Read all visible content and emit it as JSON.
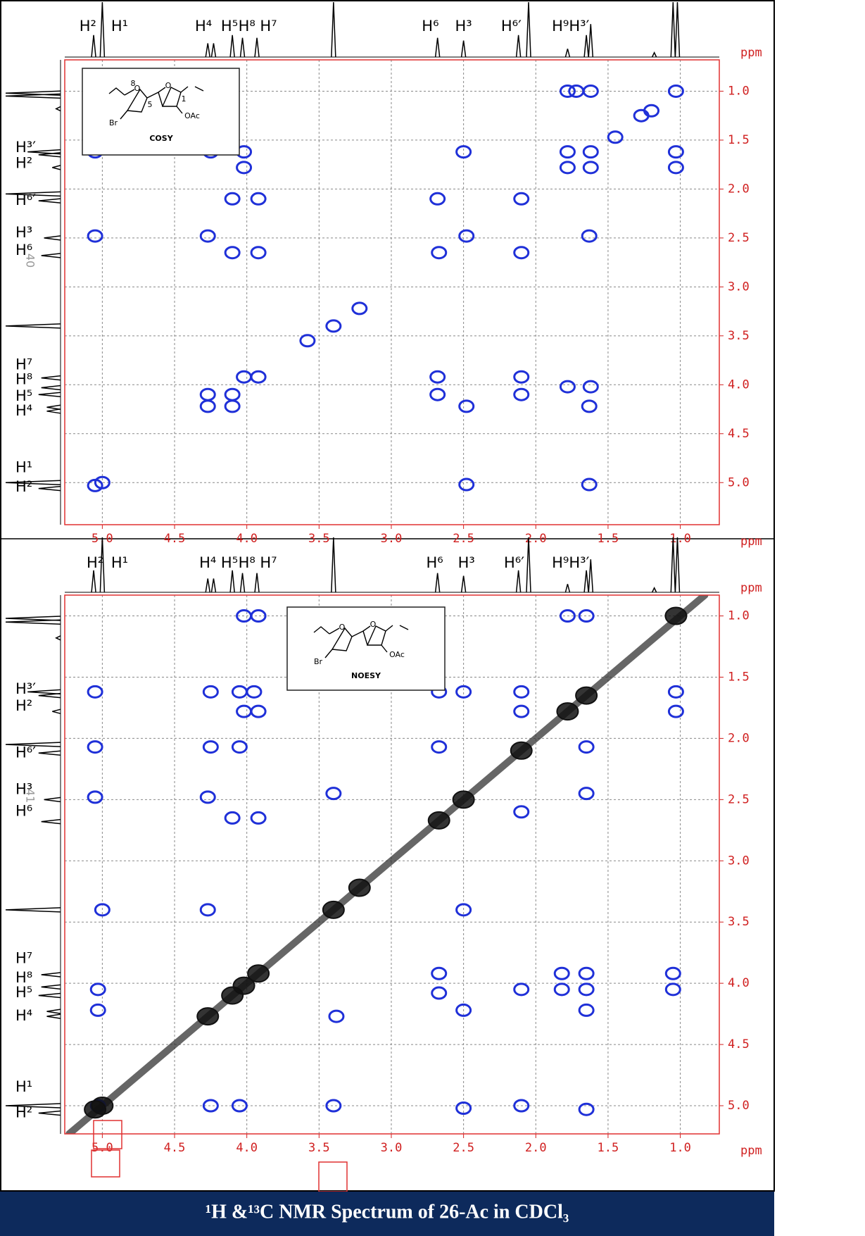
{
  "chart_data": [
    {
      "type": "scatter",
      "xlabel": "ppm",
      "ylabel": "ppm",
      "xlim": [
        5.26,
        0.73
      ],
      "ylim": [
        5.43,
        0.68
      ],
      "xticks": [
        {
          "value": 5.0,
          "label": "5.0"
        },
        {
          "value": 4.5,
          "label": "4.5"
        },
        {
          "value": 4.0,
          "label": "4.0"
        },
        {
          "value": 3.5,
          "label": "3.5"
        },
        {
          "value": 3.0,
          "label": "3.0"
        },
        {
          "value": 2.5,
          "label": "2.5"
        },
        {
          "value": 2.0,
          "label": "2.0"
        },
        {
          "value": 1.5,
          "label": "1.5"
        },
        {
          "value": 1.0,
          "label": "1.0"
        }
      ],
      "yticks": [
        {
          "value": 1.0,
          "label": "1.0"
        },
        {
          "value": 1.5,
          "label": "1.5"
        },
        {
          "value": 2.0,
          "label": "2.0"
        },
        {
          "value": 2.5,
          "label": "2.5"
        },
        {
          "value": 3.0,
          "label": "3.0"
        },
        {
          "value": 3.5,
          "label": "3.5"
        },
        {
          "value": 4.0,
          "label": "4.0"
        },
        {
          "value": 4.5,
          "label": "4.5"
        },
        {
          "value": 5.0,
          "label": "5.0"
        }
      ],
      "grid": true,
      "diagonal": false,
      "series": [
        {
          "color": "#1f30d8",
          "x": [
            1.78,
            1.72,
            1.62,
            1.03,
            1.45,
            1.27,
            1.2,
            5.05,
            4.25,
            4.02,
            2.5,
            1.78,
            1.62,
            1.03,
            4.02,
            1.78,
            1.62,
            1.03,
            4.1,
            3.92,
            2.68,
            2.1,
            5.05,
            4.27,
            2.48,
            1.63,
            4.1,
            3.92,
            2.67,
            2.1,
            3.58,
            3.4,
            3.22,
            4.02,
            3.92,
            2.68,
            2.1,
            1.78,
            1.62,
            4.27,
            4.1,
            2.68,
            2.1,
            4.27,
            4.1,
            2.48,
            1.63,
            5.05,
            5.0,
            2.48,
            1.63
          ],
          "values": [
            1.0,
            1.0,
            1.0,
            1.0,
            1.47,
            1.25,
            1.2,
            1.62,
            1.62,
            1.62,
            1.62,
            1.62,
            1.62,
            1.62,
            1.78,
            1.78,
            1.78,
            1.78,
            2.1,
            2.1,
            2.1,
            2.1,
            2.48,
            2.48,
            2.48,
            2.48,
            2.65,
            2.65,
            2.65,
            2.65,
            3.55,
            3.4,
            3.22,
            3.92,
            3.92,
            3.92,
            3.92,
            4.02,
            4.02,
            4.1,
            4.1,
            4.1,
            4.1,
            4.22,
            4.22,
            4.22,
            4.22,
            5.03,
            5.0,
            5.02,
            5.02
          ]
        }
      ],
      "projection": {
        "x": [
          5.06,
          5.0,
          4.27,
          4.23,
          4.1,
          4.03,
          3.93,
          3.4,
          2.68,
          2.5,
          2.12,
          2.05,
          1.78,
          1.65,
          1.62,
          1.18,
          1.05,
          1.02
        ],
        "values": [
          40,
          100,
          25,
          25,
          40,
          35,
          35,
          100,
          35,
          30,
          40,
          100,
          15,
          40,
          60,
          8,
          100,
          100
        ]
      },
      "top_labels": [
        {
          "text": "H²",
          "x": 5.1
        },
        {
          "text": "H¹",
          "x": 4.88
        },
        {
          "text": "H⁴",
          "x": 4.3
        },
        {
          "text": "H⁵",
          "x": 4.12
        },
        {
          "text": "H⁸",
          "x": 4.0
        },
        {
          "text": "H⁷",
          "x": 3.85
        },
        {
          "text": "H⁶",
          "x": 2.73
        },
        {
          "text": "H³",
          "x": 2.5
        },
        {
          "text": "H⁶′",
          "x": 2.17
        },
        {
          "text": "H⁹",
          "x": 1.83
        },
        {
          "text": "H³′",
          "x": 1.7
        }
      ],
      "side_labels": [
        {
          "text": "H³′",
          "y": 1.58
        },
        {
          "text": "H²",
          "y": 1.74
        },
        {
          "text": "H⁶′",
          "y": 2.12
        },
        {
          "text": "H³",
          "y": 2.45
        },
        {
          "text": "H⁶",
          "y": 2.63
        },
        {
          "text": "H⁷",
          "y": 3.8
        },
        {
          "text": "H⁸",
          "y": 3.95
        },
        {
          "text": "H⁵",
          "y": 4.12
        },
        {
          "text": "H⁴",
          "y": 4.27
        },
        {
          "text": "H¹",
          "y": 4.85
        },
        {
          "text": "H²",
          "y": 5.05
        }
      ],
      "inset": {
        "label": "COSY",
        "atoms": [
          "O",
          "O",
          "Br",
          "OAc",
          "8",
          "5",
          "1"
        ]
      },
      "page_number": "40"
    },
    {
      "type": "scatter",
      "xlabel": "ppm",
      "ylabel": "ppm",
      "xlim": [
        5.26,
        0.73
      ],
      "ylim": [
        5.23,
        0.83
      ],
      "xticks": [
        {
          "value": 5.0,
          "label": "5.0"
        },
        {
          "value": 4.5,
          "label": "4.5"
        },
        {
          "value": 4.0,
          "label": "4.0"
        },
        {
          "value": 3.5,
          "label": "3.5"
        },
        {
          "value": 3.0,
          "label": "3.0"
        },
        {
          "value": 2.5,
          "label": "2.5"
        },
        {
          "value": 2.0,
          "label": "2.0"
        },
        {
          "value": 1.5,
          "label": "1.5"
        },
        {
          "value": 1.0,
          "label": "1.0"
        }
      ],
      "yticks": [
        {
          "value": 1.0,
          "label": "1.0"
        },
        {
          "value": 1.5,
          "label": "1.5"
        },
        {
          "value": 2.0,
          "label": "2.0"
        },
        {
          "value": 2.5,
          "label": "2.5"
        },
        {
          "value": 3.0,
          "label": "3.0"
        },
        {
          "value": 3.5,
          "label": "3.5"
        },
        {
          "value": 4.0,
          "label": "4.0"
        },
        {
          "value": 4.5,
          "label": "4.5"
        },
        {
          "value": 5.0,
          "label": "5.0"
        }
      ],
      "grid": true,
      "diagonal": true,
      "series": [
        {
          "color": "#1f30d8",
          "x": [
            4.02,
            3.92,
            1.78,
            1.65,
            5.05,
            4.25,
            4.05,
            3.95,
            2.67,
            2.5,
            2.1,
            1.03,
            4.02,
            3.92,
            2.1,
            1.03,
            5.05,
            4.25,
            4.05,
            2.67,
            1.65,
            5.05,
            4.27,
            3.4,
            1.65,
            4.1,
            3.92,
            2.1,
            5.0,
            4.27,
            2.5,
            2.67,
            1.82,
            1.65,
            1.05,
            5.03,
            2.67,
            2.1,
            1.82,
            1.65,
            1.05,
            5.03,
            3.38,
            2.5,
            1.65,
            5.03,
            4.25,
            4.05,
            3.4,
            2.5,
            2.1,
            1.65
          ],
          "values": [
            1.0,
            1.0,
            1.0,
            1.0,
            1.62,
            1.62,
            1.62,
            1.62,
            1.62,
            1.62,
            1.62,
            1.62,
            1.78,
            1.78,
            1.78,
            1.78,
            2.07,
            2.07,
            2.07,
            2.07,
            2.07,
            2.48,
            2.48,
            2.45,
            2.45,
            2.65,
            2.65,
            2.6,
            3.4,
            3.4,
            3.4,
            3.92,
            3.92,
            3.92,
            3.92,
            4.05,
            4.08,
            4.05,
            4.05,
            4.05,
            4.05,
            4.22,
            4.27,
            4.22,
            4.22,
            5.0,
            5.0,
            5.0,
            5.0,
            5.02,
            5.0,
            5.03
          ]
        },
        {
          "color": "#111111",
          "x": [
            5.05,
            5.0,
            4.27,
            4.1,
            4.02,
            3.92,
            3.4,
            3.22,
            2.67,
            2.5,
            2.1,
            1.78,
            1.65,
            1.03
          ],
          "values": [
            5.03,
            5.0,
            4.27,
            4.1,
            4.02,
            3.92,
            3.4,
            3.22,
            2.67,
            2.5,
            2.1,
            1.78,
            1.65,
            1.0
          ]
        }
      ],
      "projection": {
        "x": [
          5.06,
          5.0,
          4.27,
          4.23,
          4.1,
          4.03,
          3.93,
          3.4,
          2.68,
          2.5,
          2.12,
          2.05,
          1.78,
          1.65,
          1.62,
          1.18,
          1.05,
          1.02
        ],
        "values": [
          40,
          100,
          25,
          25,
          40,
          35,
          35,
          100,
          35,
          30,
          40,
          100,
          15,
          40,
          60,
          8,
          100,
          100
        ]
      },
      "top_labels": [
        {
          "text": "H²",
          "x": 5.05
        },
        {
          "text": "H¹",
          "x": 4.88
        },
        {
          "text": "H⁴",
          "x": 4.27
        },
        {
          "text": "H⁵",
          "x": 4.12
        },
        {
          "text": "H⁸",
          "x": 4.0
        },
        {
          "text": "H⁷",
          "x": 3.85
        },
        {
          "text": "H⁶",
          "x": 2.7
        },
        {
          "text": "H³",
          "x": 2.48
        },
        {
          "text": "H⁶′",
          "x": 2.15
        },
        {
          "text": "H⁹",
          "x": 1.83
        },
        {
          "text": "H³′",
          "x": 1.7
        }
      ],
      "side_labels": [
        {
          "text": "H³′",
          "y": 1.6
        },
        {
          "text": "H²",
          "y": 1.74
        },
        {
          "text": "H⁶′",
          "y": 2.12
        },
        {
          "text": "H³",
          "y": 2.42
        },
        {
          "text": "H⁶",
          "y": 2.6
        },
        {
          "text": "H⁷",
          "y": 3.8
        },
        {
          "text": "H⁸",
          "y": 3.96
        },
        {
          "text": "H⁵",
          "y": 4.08
        },
        {
          "text": "H⁴",
          "y": 4.27
        },
        {
          "text": "H¹",
          "y": 4.85
        },
        {
          "text": "H²",
          "y": 5.06
        }
      ],
      "inset": {
        "label": "NOESY",
        "atoms": [
          "O",
          "O",
          "Br",
          "OAc"
        ]
      },
      "page_number": "41"
    }
  ],
  "caption": "¹H &¹³C NMR Spectrum of 26-Ac in CDCl₃"
}
